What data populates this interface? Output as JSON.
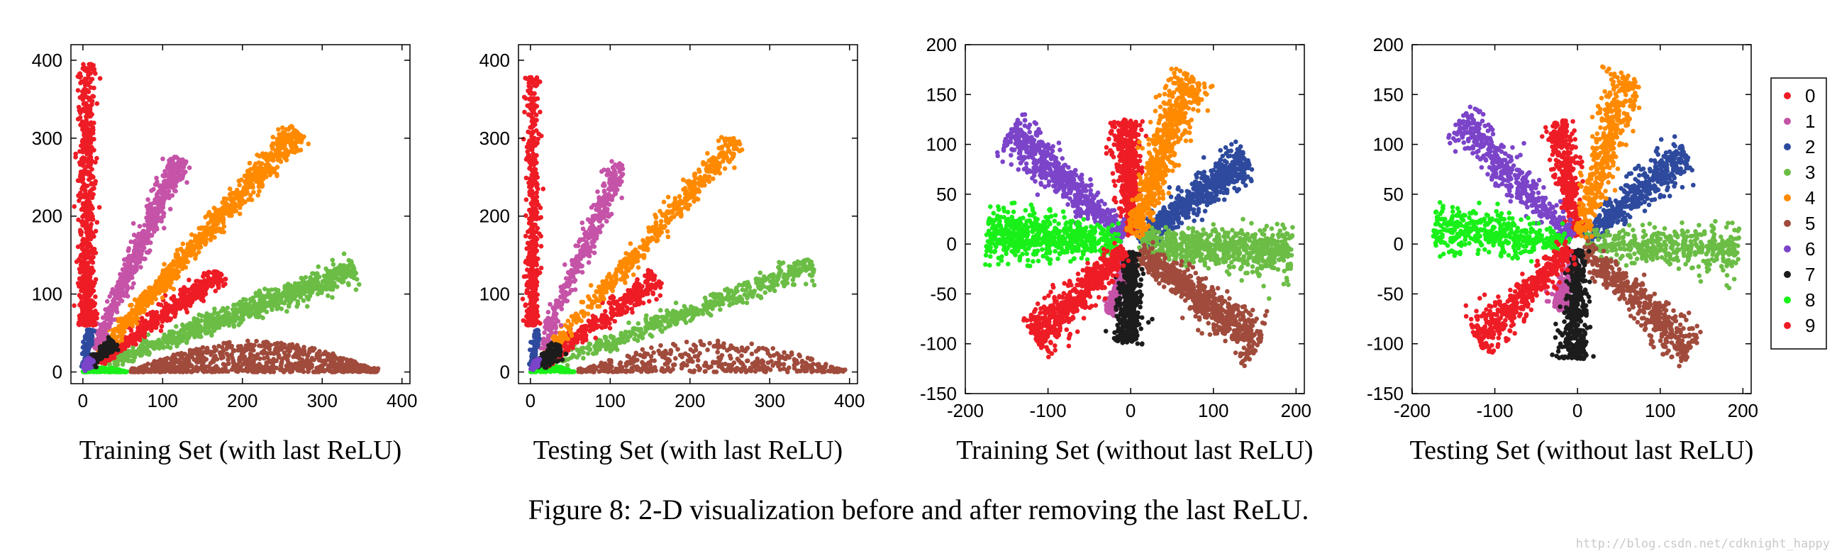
{
  "caption": "Figure 8: 2-D visualization before and after removing the last ReLU.",
  "watermark": "http://blog.csdn.net/cdknight_happy",
  "colors": {
    "0": "#ee1c25",
    "1": "#c553a7",
    "2": "#2e4a9e",
    "3": "#6bbd45",
    "4": "#ff8a00",
    "5": "#a04b3c",
    "6": "#7b44c9",
    "7": "#1c1c1c",
    "8": "#19f019",
    "9": "#ee1c25"
  },
  "legend": [
    "0",
    "1",
    "2",
    "3",
    "4",
    "5",
    "6",
    "7",
    "8",
    "9"
  ],
  "chart_data": [
    {
      "type": "scatter",
      "title": "",
      "xlabel": "Training Set (with last ReLU)",
      "ylabel": "",
      "xlim": [
        -15,
        410
      ],
      "ylim": [
        -15,
        420
      ],
      "xticks": [
        "0",
        "100",
        "200",
        "300",
        "400"
      ],
      "yticks": [
        "0",
        "100",
        "200",
        "300",
        "400"
      ],
      "grid": false,
      "series": [
        {
          "name": "5",
          "shape": "blob",
          "x_range": [
            60,
            370
          ],
          "y_peak": 40,
          "n": 900,
          "seed": 5
        },
        {
          "name": "8",
          "shape": "blob",
          "x_range": [
            0,
            55
          ],
          "y_peak": 6,
          "n": 160,
          "seed": 8
        },
        {
          "name": "3",
          "shape": "ray",
          "angle_deg": 21,
          "r_min": 30,
          "r_max": 365,
          "spread": 7,
          "n": 900,
          "seed": 3
        },
        {
          "name": "9",
          "shape": "ray",
          "angle_deg": 36,
          "r_min": 20,
          "r_max": 215,
          "spread": 6,
          "n": 500,
          "seed": 9
        },
        {
          "name": "4",
          "shape": "ray",
          "angle_deg": 49,
          "r_min": 30,
          "r_max": 410,
          "spread": 7,
          "n": 900,
          "seed": 4
        },
        {
          "name": "1",
          "shape": "ray",
          "angle_deg": 66,
          "r_min": 30,
          "r_max": 300,
          "spread": 6,
          "n": 600,
          "seed": 1
        },
        {
          "name": "0",
          "shape": "vert",
          "x_center": 5,
          "x_width": 9,
          "y_range": [
            60,
            395
          ],
          "n": 700,
          "seed": 10
        },
        {
          "name": "2",
          "shape": "ray",
          "angle_deg": 80,
          "r_min": 5,
          "r_max": 55,
          "spread": 3,
          "n": 120,
          "seed": 2
        },
        {
          "name": "7",
          "shape": "ray",
          "angle_deg": 45,
          "r_min": 10,
          "r_max": 55,
          "spread": 4,
          "n": 160,
          "seed": 7
        },
        {
          "name": "6",
          "shape": "ray",
          "angle_deg": 60,
          "r_min": 2,
          "r_max": 20,
          "spread": 2,
          "n": 60,
          "seed": 6
        }
      ]
    },
    {
      "type": "scatter",
      "title": "",
      "xlabel": "Testing Set (with last ReLU)",
      "ylabel": "",
      "xlim": [
        -15,
        410
      ],
      "ylim": [
        -15,
        420
      ],
      "xticks": [
        "0",
        "100",
        "200",
        "300",
        "400"
      ],
      "yticks": [
        "0",
        "100",
        "200",
        "300",
        "400"
      ],
      "grid": false,
      "series": [
        {
          "name": "5",
          "shape": "blob",
          "x_range": [
            60,
            395
          ],
          "y_peak": 40,
          "n": 450,
          "seed": 15
        },
        {
          "name": "8",
          "shape": "blob",
          "x_range": [
            0,
            55
          ],
          "y_peak": 8,
          "n": 120,
          "seed": 18
        },
        {
          "name": "3",
          "shape": "ray",
          "angle_deg": 21,
          "r_min": 30,
          "r_max": 380,
          "spread": 7,
          "n": 500,
          "seed": 13
        },
        {
          "name": "9",
          "shape": "ray",
          "angle_deg": 37,
          "r_min": 20,
          "r_max": 200,
          "spread": 7,
          "n": 350,
          "seed": 19
        },
        {
          "name": "4",
          "shape": "ray",
          "angle_deg": 49,
          "r_min": 30,
          "r_max": 395,
          "spread": 7,
          "n": 500,
          "seed": 14
        },
        {
          "name": "1",
          "shape": "ray",
          "angle_deg": 67,
          "r_min": 30,
          "r_max": 290,
          "spread": 6,
          "n": 380,
          "seed": 11
        },
        {
          "name": "0",
          "shape": "vert",
          "x_center": 3,
          "x_width": 7,
          "y_range": [
            60,
            380
          ],
          "n": 450,
          "seed": 20
        },
        {
          "name": "2",
          "shape": "ray",
          "angle_deg": 80,
          "r_min": 5,
          "r_max": 55,
          "spread": 3,
          "n": 80,
          "seed": 12
        },
        {
          "name": "7",
          "shape": "ray",
          "angle_deg": 40,
          "r_min": 8,
          "r_max": 50,
          "spread": 5,
          "n": 120,
          "seed": 17
        },
        {
          "name": "6",
          "shape": "ray",
          "angle_deg": 60,
          "r_min": 2,
          "r_max": 20,
          "spread": 2,
          "n": 50,
          "seed": 16
        }
      ]
    },
    {
      "type": "scatter",
      "title": "",
      "xlabel": "Training Set (without last ReLU)",
      "ylabel": "",
      "xlim": [
        -200,
        210
      ],
      "ylim": [
        -150,
        200
      ],
      "xticks": [
        "-200",
        "-100",
        "0",
        "100",
        "200"
      ],
      "yticks": [
        "-150",
        "-100",
        "-50",
        "0",
        "50",
        "100",
        "150",
        "200"
      ],
      "grid": false,
      "series": [
        {
          "name": "0",
          "shape": "ray",
          "angle_deg": 93,
          "r_min": 8,
          "r_max": 125,
          "spread": 9,
          "n": 500,
          "seed": 21
        },
        {
          "name": "1",
          "shape": "ray",
          "angle_deg": 250,
          "r_min": 8,
          "r_max": 75,
          "spread": 4,
          "n": 250,
          "seed": 22
        },
        {
          "name": "2",
          "shape": "ray",
          "angle_deg": 31,
          "r_min": 10,
          "r_max": 165,
          "spread": 9,
          "n": 600,
          "seed": 23
        },
        {
          "name": "3",
          "shape": "ray",
          "angle_deg": 357,
          "r_min": 10,
          "r_max": 195,
          "spread": 12,
          "n": 700,
          "seed": 24
        },
        {
          "name": "4",
          "shape": "ray",
          "angle_deg": 67,
          "r_min": 10,
          "r_max": 185,
          "spread": 10,
          "n": 650,
          "seed": 25
        },
        {
          "name": "5",
          "shape": "ray",
          "angle_deg": 327,
          "r_min": 10,
          "r_max": 185,
          "spread": 10,
          "n": 650,
          "seed": 26
        },
        {
          "name": "6",
          "shape": "ray",
          "angle_deg": 142,
          "r_min": 10,
          "r_max": 185,
          "spread": 10,
          "n": 650,
          "seed": 27
        },
        {
          "name": "7",
          "shape": "ray",
          "angle_deg": 268,
          "r_min": 8,
          "r_max": 100,
          "spread": 8,
          "n": 450,
          "seed": 28
        },
        {
          "name": "8",
          "shape": "ray",
          "angle_deg": 176,
          "r_min": 10,
          "r_max": 175,
          "spread": 12,
          "n": 650,
          "seed": 29
        },
        {
          "name": "9",
          "shape": "ray",
          "angle_deg": 219,
          "r_min": 10,
          "r_max": 150,
          "spread": 10,
          "n": 600,
          "seed": 30
        }
      ]
    },
    {
      "type": "scatter",
      "title": "",
      "xlabel": "Testing Set (without last ReLU)",
      "ylabel": "",
      "xlim": [
        -200,
        210
      ],
      "ylim": [
        -150,
        200
      ],
      "xticks": [
        "-200",
        "-100",
        "0",
        "100",
        "200"
      ],
      "yticks": [
        "-150",
        "-100",
        "-50",
        "0",
        "50",
        "100",
        "150",
        "200"
      ],
      "grid": false,
      "series": [
        {
          "name": "0",
          "shape": "ray",
          "angle_deg": 100,
          "r_min": 8,
          "r_max": 125,
          "spread": 8,
          "n": 380,
          "seed": 31
        },
        {
          "name": "1",
          "shape": "ray",
          "angle_deg": 250,
          "r_min": 8,
          "r_max": 70,
          "spread": 5,
          "n": 200,
          "seed": 32
        },
        {
          "name": "2",
          "shape": "ray",
          "angle_deg": 35,
          "r_min": 8,
          "r_max": 160,
          "spread": 9,
          "n": 450,
          "seed": 33
        },
        {
          "name": "3",
          "shape": "ray",
          "angle_deg": 358,
          "r_min": 10,
          "r_max": 195,
          "spread": 11,
          "n": 450,
          "seed": 34
        },
        {
          "name": "4",
          "shape": "ray",
          "angle_deg": 70,
          "r_min": 8,
          "r_max": 180,
          "spread": 10,
          "n": 450,
          "seed": 35
        },
        {
          "name": "5",
          "shape": "ray",
          "angle_deg": 322,
          "r_min": 8,
          "r_max": 175,
          "spread": 10,
          "n": 450,
          "seed": 36
        },
        {
          "name": "6",
          "shape": "ray",
          "angle_deg": 139,
          "r_min": 8,
          "r_max": 190,
          "spread": 10,
          "n": 450,
          "seed": 37
        },
        {
          "name": "7",
          "shape": "ray",
          "angle_deg": 268,
          "r_min": 5,
          "r_max": 115,
          "spread": 8,
          "n": 400,
          "seed": 38
        },
        {
          "name": "8",
          "shape": "ray",
          "angle_deg": 174,
          "r_min": 10,
          "r_max": 175,
          "spread": 11,
          "n": 450,
          "seed": 39
        },
        {
          "name": "9",
          "shape": "ray",
          "angle_deg": 218,
          "r_min": 8,
          "r_max": 155,
          "spread": 10,
          "n": 450,
          "seed": 40
        }
      ]
    }
  ]
}
